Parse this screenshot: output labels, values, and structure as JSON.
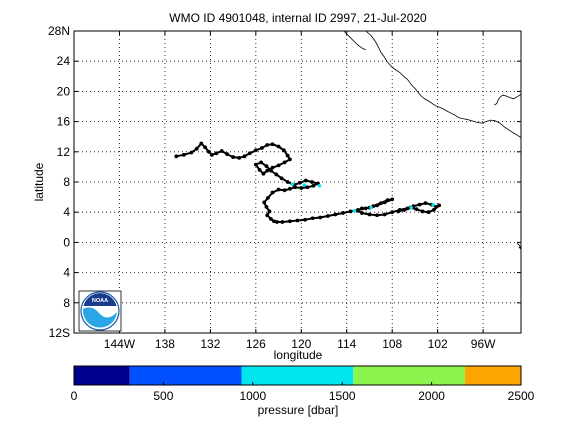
{
  "chart_data": [
    {
      "type": "scatter",
      "title": "WMO ID 4901048, internal ID 2997, 21-Jul-2020",
      "xlabel": "longitude",
      "ylabel": "latitude",
      "xlim": [
        -150,
        -91
      ],
      "ylim": [
        -12,
        28
      ],
      "grid": true,
      "x_ticks": [
        -144,
        -138,
        -132,
        -126,
        -120,
        -114,
        -108,
        -102,
        -96
      ],
      "x_tick_labels": [
        "144W",
        "138",
        "132",
        "126",
        "120",
        "114",
        "108",
        "102",
        "96W"
      ],
      "y_ticks": [
        -12,
        -8,
        -4,
        0,
        4,
        8,
        12,
        16,
        20,
        24,
        28
      ],
      "y_tick_labels": [
        "12S",
        "8",
        "4",
        "0",
        "4",
        "8",
        "12",
        "16",
        "20",
        "24",
        "28N"
      ],
      "series": [
        {
          "color": "#000000",
          "x": [
            -136.5,
            -135.5,
            -134.5,
            -133.8,
            -133.2,
            -132.7,
            -132.2,
            -131.8,
            -131.2,
            -130.5,
            -129.8,
            -129.0,
            -128.2,
            -127.5,
            -126.8,
            -126.0,
            -125.2,
            -124.5,
            -123.8,
            -123.0,
            -122.3,
            -121.8,
            -121.5,
            -122.2,
            -123.0,
            -123.8,
            -124.5,
            -125.0,
            -125.5,
            -126.0,
            -125.3,
            -124.6,
            -124.0,
            -123.3,
            -122.6,
            -121.8,
            -121.0,
            -120.2,
            -119.4,
            -118.6,
            -117.8,
            -118.4,
            -119.2,
            -120.0,
            -120.8,
            -121.5,
            -122.2,
            -123.0,
            -123.8,
            -124.4,
            -124.9,
            -124.6,
            -124.2,
            -124.5,
            -124.0,
            -123.6,
            -123.2,
            -122.5,
            -121.5,
            -120.5,
            -119.5,
            -118.5,
            -117.5,
            -116.5,
            -115.5,
            -114.5,
            -113.5,
            -112.5,
            -111.5,
            -110.5,
            -109.5,
            -108.6,
            -108.0,
            -109.0,
            -110.0,
            -111.0,
            -112.0,
            -112.6,
            -112.0,
            -111.0,
            -110.0,
            -109.0,
            -108.0,
            -107.0,
            -106.0,
            -105.2,
            -104.4,
            -103.6,
            -102.8,
            -102.2,
            -101.8,
            -102.5,
            -103.2,
            -104.0,
            -104.8,
            -105.6,
            -106.4,
            -107.2
          ],
          "y": [
            11.4,
            11.6,
            11.9,
            12.4,
            13.1,
            12.6,
            12.0,
            11.6,
            11.8,
            12.1,
            11.7,
            11.3,
            11.2,
            11.4,
            11.8,
            12.2,
            12.5,
            12.9,
            13.0,
            12.7,
            12.2,
            11.5,
            11.0,
            10.6,
            10.2,
            9.9,
            9.5,
            9.1,
            9.6,
            10.3,
            10.6,
            10.1,
            9.5,
            9.0,
            8.5,
            8.0,
            7.6,
            7.9,
            8.2,
            8.0,
            7.8,
            7.5,
            7.3,
            7.2,
            7.3,
            7.1,
            6.9,
            7.0,
            6.6,
            5.9,
            5.3,
            4.7,
            4.1,
            3.6,
            3.1,
            2.8,
            2.7,
            2.7,
            2.8,
            2.9,
            3.0,
            3.2,
            3.3,
            3.5,
            3.7,
            3.9,
            4.1,
            4.3,
            4.5,
            4.8,
            5.2,
            5.6,
            5.7,
            5.3,
            4.9,
            4.6,
            4.5,
            4.2,
            3.9,
            3.7,
            3.6,
            3.7,
            4.0,
            4.3,
            4.5,
            4.8,
            5.0,
            5.2,
            5.0,
            4.7,
            4.9,
            4.3,
            4.0,
            4.1,
            4.4,
            4.6,
            4.3,
            4.1
          ]
        }
      ],
      "highlight_points": {
        "color": "#00e5ee",
        "x": [
          -121.2,
          -119.6,
          -117.6,
          -113.0,
          -110.8,
          -105.5,
          -102.6
        ],
        "y": [
          7.7,
          7.6,
          7.5,
          4.2,
          4.6,
          4.6,
          5.0
        ]
      },
      "coastlines": [
        {
          "x": [
            -111.5,
            -110.8,
            -110.2,
            -109.8,
            -109.5,
            -109.0,
            -108.7,
            -108.2,
            -107.6,
            -107.0,
            -106.5,
            -106.0,
            -105.7,
            -105.4,
            -105.0,
            -104.6,
            -104.2,
            -103.7,
            -103.0,
            -102.3,
            -101.5,
            -100.8,
            -100.2,
            -99.6,
            -99.2,
            -98.7,
            -98.2,
            -97.5,
            -96.8,
            -96.2,
            -95.6,
            -95.0,
            -94.4,
            -93.8,
            -93.2,
            -92.6,
            -92.0,
            -91.5,
            -91.0
          ],
          "y": [
            28.0,
            27.4,
            26.6,
            25.8,
            25.2,
            24.5,
            24.0,
            23.4,
            22.9,
            22.5,
            22.0,
            21.6,
            21.2,
            20.8,
            20.4,
            19.9,
            19.4,
            19.0,
            18.6,
            18.1,
            17.8,
            17.4,
            17.1,
            16.8,
            16.5,
            16.4,
            16.3,
            16.1,
            15.9,
            15.8,
            16.0,
            16.2,
            16.1,
            15.8,
            15.3,
            14.9,
            14.5,
            14.2,
            13.9
          ]
        },
        {
          "x": [
            -114.4,
            -114.0,
            -113.5,
            -113.0,
            -112.6,
            -112.2,
            -111.9,
            -111.5
          ],
          "y": [
            28.0,
            27.6,
            27.1,
            26.6,
            26.2,
            25.9,
            25.7,
            25.5
          ]
        },
        {
          "x": [
            -94.5,
            -94.2,
            -94.0,
            -93.7,
            -93.4,
            -93.0,
            -92.5,
            -92.0,
            -91.5,
            -91.0
          ],
          "y": [
            18.2,
            18.4,
            18.9,
            19.3,
            19.5,
            19.4,
            19.2,
            19.0,
            19.3,
            19.6
          ]
        },
        {
          "x": [
            -91.5,
            -91.2,
            -91.0,
            -91.3
          ],
          "y": [
            -0.1,
            -0.4,
            -0.9,
            -0.6
          ]
        }
      ]
    },
    {
      "type": "heatmap",
      "role": "colorbar",
      "xlabel": "pressure [dbar]",
      "xlim": [
        0,
        2500
      ],
      "ticks": [
        0,
        500,
        1000,
        1500,
        2000,
        2500
      ],
      "tick_labels": [
        "0",
        "500",
        "1000",
        "1500",
        "2000",
        "2500"
      ],
      "bins": [
        {
          "from": 0,
          "to": 312,
          "color": "#00008f"
        },
        {
          "from": 312,
          "to": 937,
          "color": "#0050ff"
        },
        {
          "from": 937,
          "to": 1562,
          "color": "#00e5ee"
        },
        {
          "from": 1562,
          "to": 2187,
          "color": "#8cf54d"
        },
        {
          "from": 2187,
          "to": 2500,
          "color": "#ffa500"
        }
      ]
    }
  ],
  "logo": {
    "text": "NOAA",
    "icon": "noaa-logo-icon"
  }
}
